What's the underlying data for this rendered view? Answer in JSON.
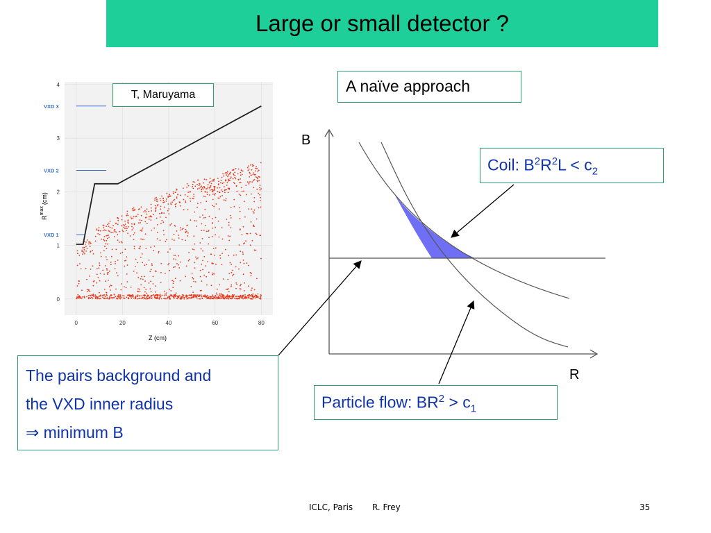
{
  "slide": {
    "title": "Large or small detector ?",
    "title_bg": "#1fcf99",
    "accent_text": "#1033a8",
    "box_border": "#2aa070"
  },
  "plot": {
    "credit": "T, Maruyama",
    "xlabel": "Z (cm)",
    "ylabel_main": "R",
    "ylabel_sup": "max",
    "ylabel_unit": "(cm)",
    "x_ticks": [
      "0",
      "20",
      "40",
      "60",
      "80"
    ],
    "y_ticks": [
      "0",
      "1",
      "2",
      "3",
      "4"
    ],
    "vxd_labels": [
      "VXD 3",
      "VXD 2",
      "VXD 1"
    ]
  },
  "boxes": {
    "naive": "A naïve approach",
    "coil_prefix": "Coil: B",
    "coil_sup1": "2",
    "coil_mid": "R",
    "coil_sup2": "2",
    "coil_mid2": "L < c",
    "coil_sub": "2",
    "flow_prefix": "Particle flow:  BR",
    "flow_sup": "2",
    "flow_mid": " > c",
    "flow_sub": "1",
    "pairs_line1": "The pairs background and",
    "pairs_line2": "the VXD inner radius",
    "pairs_line3": "⇒ minimum B"
  },
  "diagram": {
    "axis_y": "B",
    "axis_x": "R",
    "region_color": "#6f6ff5"
  },
  "footer": {
    "venue": "ICLC, Paris",
    "author": "R. Frey",
    "page": "35"
  },
  "chart_data": {
    "type": "scatter",
    "xlabel": "Z (cm)",
    "ylabel": "R max (cm)",
    "xlim": [
      -5,
      85
    ],
    "ylim": [
      -0.3,
      4.05
    ],
    "x_ticks": [
      0,
      20,
      40,
      60,
      80
    ],
    "y_ticks": [
      0,
      1,
      2,
      3,
      4
    ],
    "series": [
      {
        "kind": "boundary-line",
        "x": [
          0,
          3,
          8,
          18,
          80
        ],
        "y": [
          1.02,
          1.02,
          2.15,
          2.15,
          3.6
        ]
      },
      {
        "kind": "VXD layer",
        "name": "VXD 3",
        "x": [
          0,
          13
        ],
        "y": [
          3.6,
          3.6
        ]
      },
      {
        "kind": "VXD layer",
        "name": "VXD 2",
        "x": [
          0,
          13
        ],
        "y": [
          2.4,
          2.4
        ]
      },
      {
        "kind": "VXD layer",
        "name": "VXD 1",
        "x": [
          0,
          4
        ],
        "y": [
          1.2,
          1.2
        ]
      },
      {
        "kind": "scatter-envelope",
        "description": "pairs background, dense red points below envelope",
        "x": [
          0,
          5,
          10,
          20,
          30,
          40,
          50,
          60,
          70,
          80
        ],
        "y": [
          0.9,
          1.15,
          1.35,
          1.6,
          1.8,
          2.0,
          2.2,
          2.3,
          2.45,
          2.55
        ]
      }
    ]
  }
}
